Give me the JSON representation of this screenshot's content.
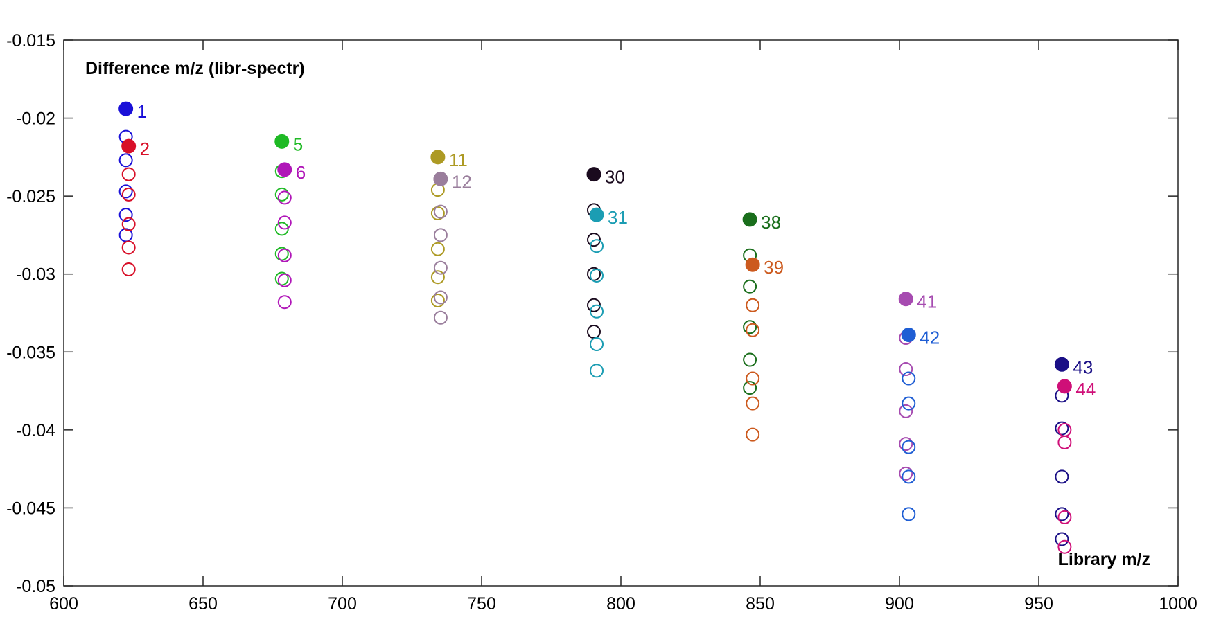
{
  "chart_data": {
    "type": "scatter",
    "title": "",
    "xlabel": "Library m/z",
    "ylabel": "Difference m/z (libr-spectr)",
    "xlim": [
      600,
      1000
    ],
    "ylim": [
      -0.05,
      -0.015
    ],
    "xticks": [
      600,
      650,
      700,
      750,
      800,
      850,
      900,
      950,
      1000
    ],
    "yticks": [
      -0.05,
      -0.045,
      -0.04,
      -0.035,
      -0.03,
      -0.025,
      -0.02,
      -0.015
    ],
    "xtick_labels": [
      "600",
      "650",
      "700",
      "750",
      "800",
      "850",
      "900",
      "950",
      "1000"
    ],
    "ytick_labels": [
      "-0.05",
      "-0.045",
      "-0.04",
      "-0.035",
      "-0.03",
      "-0.025",
      "-0.02",
      "-0.015"
    ],
    "grid": false,
    "legend": "none",
    "series": [
      {
        "label": "1",
        "color": "#1a10d8",
        "filled": {
          "x": 622.3,
          "y": -0.0194
        },
        "open": {
          "x": 622.3,
          "y": [
            -0.0212,
            -0.0227,
            -0.0247,
            -0.0262,
            -0.0275
          ]
        }
      },
      {
        "label": "2",
        "color": "#d80f28",
        "filled": {
          "x": 623.3,
          "y": -0.0218
        },
        "open": {
          "x": 623.3,
          "y": [
            -0.0236,
            -0.0249,
            -0.0268,
            -0.0283,
            -0.0297
          ]
        }
      },
      {
        "label": "5",
        "color": "#1fba25",
        "filled": {
          "x": 678.3,
          "y": -0.0215
        },
        "open": {
          "x": 678.3,
          "y": [
            -0.0234,
            -0.0249,
            -0.0271,
            -0.0287,
            -0.0303
          ]
        }
      },
      {
        "label": "6",
        "color": "#b016b8",
        "filled": {
          "x": 679.3,
          "y": -0.0233
        },
        "open": {
          "x": 679.3,
          "y": [
            -0.0251,
            -0.0267,
            -0.0288,
            -0.0304,
            -0.0318
          ]
        }
      },
      {
        "label": "11",
        "color": "#ad9a24",
        "filled": {
          "x": 734.3,
          "y": -0.0225
        },
        "open": {
          "x": 734.3,
          "y": [
            -0.0246,
            -0.0261,
            -0.0284,
            -0.0302,
            -0.0317
          ]
        }
      },
      {
        "label": "12",
        "color": "#9a7e9c",
        "filled": {
          "x": 735.3,
          "y": -0.0239
        },
        "open": {
          "x": 735.3,
          "y": [
            -0.026,
            -0.0275,
            -0.0296,
            -0.0315,
            -0.0328
          ]
        }
      },
      {
        "label": "30",
        "color": "#1a0a1e",
        "filled": {
          "x": 790.3,
          "y": -0.0236
        },
        "open": {
          "x": 790.3,
          "y": [
            -0.0259,
            -0.0278,
            -0.03,
            -0.032,
            -0.0337
          ]
        }
      },
      {
        "label": "31",
        "color": "#1b9db3",
        "filled": {
          "x": 791.3,
          "y": -0.0262
        },
        "open": {
          "x": 791.3,
          "y": [
            -0.0282,
            -0.0301,
            -0.0324,
            -0.0345,
            -0.0362
          ]
        }
      },
      {
        "label": "38",
        "color": "#1a6e1c",
        "filled": {
          "x": 846.3,
          "y": -0.0265
        },
        "open": {
          "x": 846.3,
          "y": [
            -0.0288,
            -0.0308,
            -0.0334,
            -0.0355,
            -0.0373
          ]
        }
      },
      {
        "label": "39",
        "color": "#cc5a1e",
        "filled": {
          "x": 847.3,
          "y": -0.0294
        },
        "open": {
          "x": 847.3,
          "y": [
            -0.032,
            -0.0336,
            -0.0367,
            -0.0383,
            -0.0403
          ]
        }
      },
      {
        "label": "41",
        "color": "#a64bb0",
        "filled": {
          "x": 902.3,
          "y": -0.0316
        },
        "open": {
          "x": 902.3,
          "y": [
            -0.0341,
            -0.0361,
            -0.0388,
            -0.0409,
            -0.0428
          ]
        }
      },
      {
        "label": "42",
        "color": "#1f5ed4",
        "filled": {
          "x": 903.3,
          "y": -0.0339
        },
        "open": {
          "x": 903.3,
          "y": [
            -0.0367,
            -0.0383,
            -0.0411,
            -0.043,
            -0.0454
          ]
        }
      },
      {
        "label": "43",
        "color": "#1a0f86",
        "filled": {
          "x": 958.3,
          "y": -0.0358
        },
        "open": {
          "x": 958.3,
          "y": [
            -0.0378,
            -0.0399,
            -0.043,
            -0.0454,
            -0.047
          ]
        }
      },
      {
        "label": "44",
        "color": "#cf0f78",
        "filled": {
          "x": 959.3,
          "y": -0.0372
        },
        "open": {
          "x": 959.3,
          "y": [
            -0.04,
            -0.0408,
            -0.0456,
            -0.0475
          ]
        }
      }
    ]
  }
}
